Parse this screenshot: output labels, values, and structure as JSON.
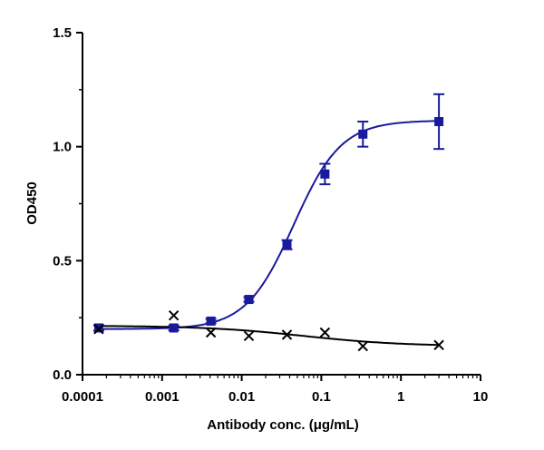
{
  "chart_data": {
    "type": "scatter",
    "xlabel": "Antibody conc. (μg/mL)",
    "ylabel": "OD450",
    "x_scale": "log",
    "xlim": [
      0.0001,
      10
    ],
    "ylim": [
      0,
      1.5
    ],
    "x_ticks": [
      0.0001,
      0.001,
      0.01,
      0.1,
      1,
      10
    ],
    "x_tick_labels": [
      "0.0001",
      "0.001",
      "0.01",
      "0.1",
      "1",
      "10"
    ],
    "y_ticks": [
      0,
      0.5,
      1.0,
      1.5
    ],
    "y_tick_labels": [
      "0.0",
      "0.5",
      "1.0",
      "1.5"
    ],
    "grid": false,
    "series": [
      {
        "marker": "square",
        "color": "#1a1a9c",
        "fit": "sigmoid",
        "x": [
          0.00016,
          0.0014,
          0.0041,
          0.0123,
          0.037,
          0.111,
          0.333,
          3.0
        ],
        "y": [
          0.205,
          0.205,
          0.235,
          0.33,
          0.57,
          0.88,
          1.055,
          1.11
        ],
        "error": [
          0.012,
          0.01,
          0.01,
          0.01,
          0.02,
          0.045,
          0.055,
          0.12
        ]
      },
      {
        "marker": "x",
        "color": "#000000",
        "fit": "sigmoid",
        "x": [
          0.00016,
          0.0014,
          0.0041,
          0.0123,
          0.037,
          0.111,
          0.333,
          3.0
        ],
        "y": [
          0.2,
          0.26,
          0.185,
          0.17,
          0.175,
          0.185,
          0.125,
          0.13
        ]
      }
    ]
  }
}
